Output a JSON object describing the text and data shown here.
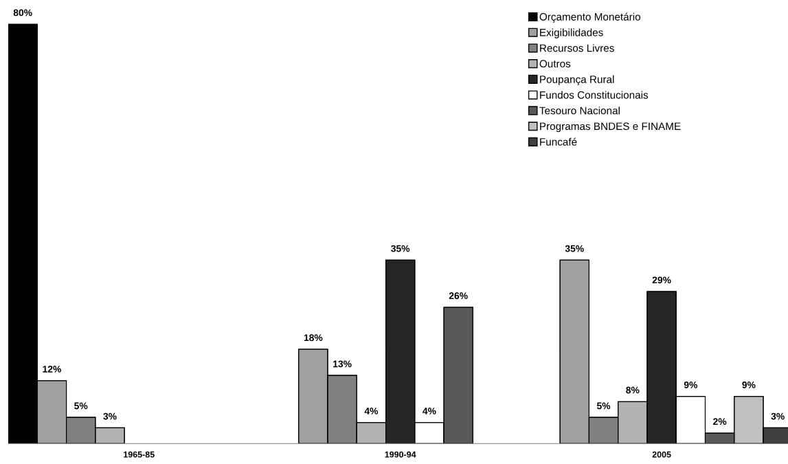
{
  "chart_data": {
    "type": "bar",
    "categories": [
      "1965-85",
      "1990-94",
      "2005"
    ],
    "series": [
      {
        "name": "Orçamento Monetário",
        "color": "#000000",
        "values": [
          80,
          null,
          null
        ],
        "value_labels": [
          "80%",
          null,
          null
        ]
      },
      {
        "name": "Exigibilidades",
        "color": "#a0a0a0",
        "values": [
          12,
          18,
          35
        ],
        "value_labels": [
          "12%",
          "18%",
          "35%"
        ]
      },
      {
        "name": "Recursos Livres",
        "color": "#808080",
        "values": [
          5,
          13,
          5
        ],
        "value_labels": [
          "5%",
          "13%",
          "5%"
        ]
      },
      {
        "name": "Outros",
        "color": "#b3b3b3",
        "values": [
          3,
          4,
          8
        ],
        "value_labels": [
          "3%",
          "4%",
          "8%"
        ]
      },
      {
        "name": "Poupança Rural",
        "color": "#262626",
        "values": [
          null,
          35,
          29
        ],
        "value_labels": [
          null,
          "35%",
          "29%"
        ]
      },
      {
        "name": "Fundos Constitucionais",
        "color": "#ffffff",
        "values": [
          null,
          4,
          9
        ],
        "value_labels": [
          null,
          "4%",
          "9%"
        ]
      },
      {
        "name": "Tesouro Nacional",
        "color": "#595959",
        "values": [
          null,
          26,
          2
        ],
        "value_labels": [
          null,
          "26%",
          "2%"
        ]
      },
      {
        "name": "Programas BNDES e FINAME",
        "color": "#c0c0c0",
        "values": [
          null,
          null,
          9
        ],
        "value_labels": [
          null,
          null,
          "9%"
        ]
      },
      {
        "name": "Funcafé",
        "color": "#404040",
        "values": [
          null,
          null,
          3
        ],
        "value_labels": [
          null,
          null,
          "3%"
        ]
      }
    ],
    "tick_labels": "x",
    "grid": false,
    "legend": "top right"
  }
}
